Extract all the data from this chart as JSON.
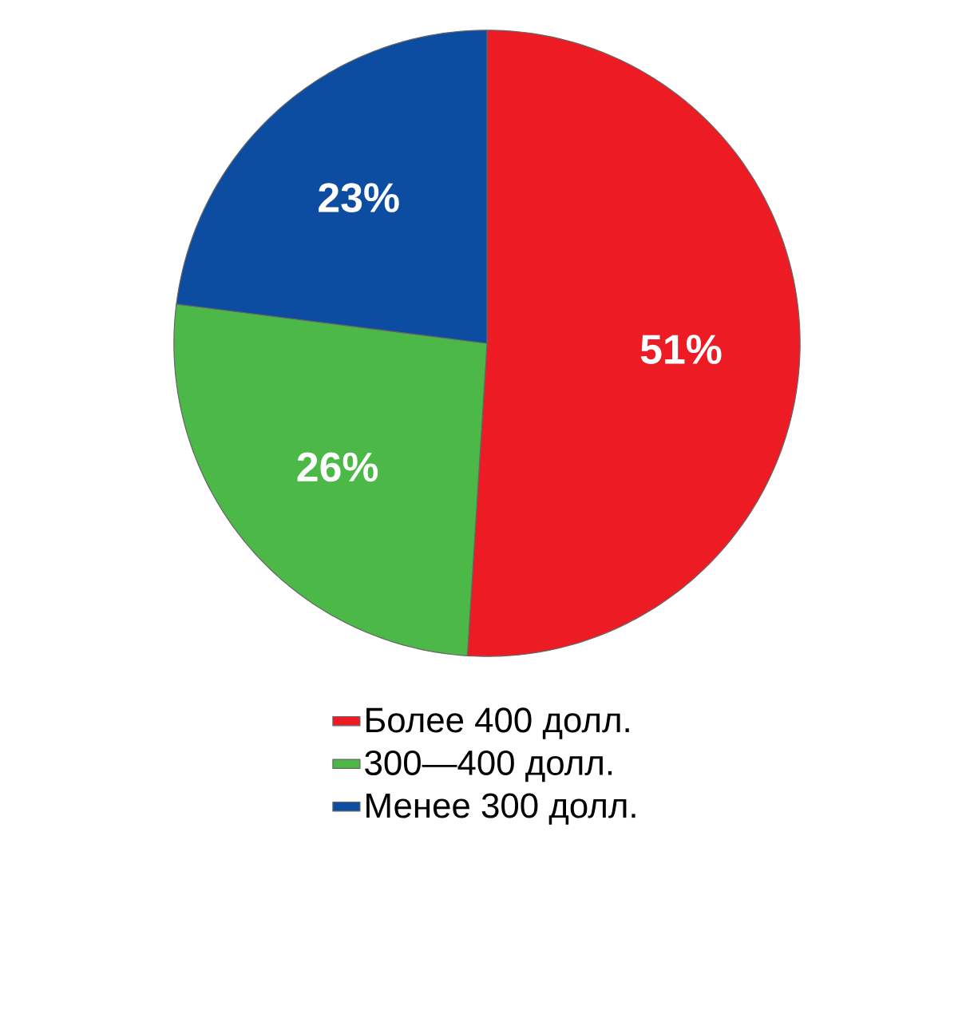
{
  "chart_data": {
    "type": "pie",
    "categories": [
      "Более 400 долл.",
      "300—400 долл.",
      "Менее 300 долл."
    ],
    "values": [
      51,
      26,
      23
    ],
    "colors": [
      "#ed1c24",
      "#4cb848",
      "#0c4da2"
    ],
    "value_labels": [
      "51%",
      "26%",
      "23%"
    ],
    "legend": "bottom"
  }
}
